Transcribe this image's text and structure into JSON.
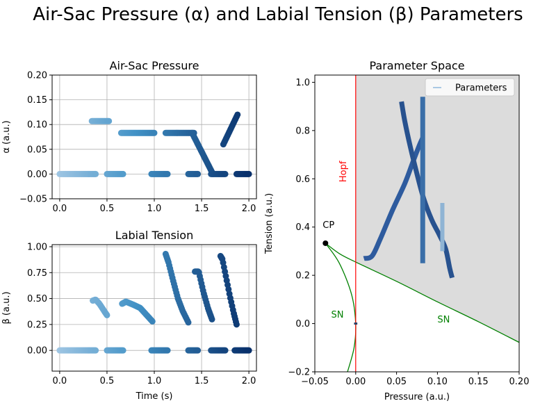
{
  "figure": {
    "suptitle": "Air-Sac Pressure (α) and Labial Tension (β) Parameters"
  },
  "colors": {
    "grid": "#b0b0b0",
    "hopf": "#ff0000",
    "sn": "#008000",
    "region": "#dcdcdc",
    "cp_point": "#000000"
  },
  "chart_data": [
    {
      "id": "alpha",
      "type": "scatter",
      "title": "Air-Sac Pressure",
      "xlabel": "",
      "ylabel": "α (a.u.)",
      "xlim": [
        -0.08,
        2.08
      ],
      "ylim": [
        -0.05,
        0.2
      ],
      "xticks": [
        0.0,
        0.5,
        1.0,
        1.5,
        2.0
      ],
      "xtick_labels": [
        "0.0",
        "0.5",
        "1.0",
        "1.5",
        "2.0"
      ],
      "yticks": [
        -0.05,
        0.0,
        0.05,
        0.1,
        0.15,
        0.2
      ],
      "ytick_labels": [
        "−0.05",
        "0.00",
        "0.05",
        "0.10",
        "0.15",
        "0.20"
      ],
      "grid": true,
      "colormap": "Blues (light → dark with time)",
      "segments": [
        {
          "x": [
            0.0,
            0.38
          ],
          "y": [
            0.0,
            0.0
          ]
        },
        {
          "x": [
            0.34,
            0.52
          ],
          "y": [
            0.107,
            0.107
          ]
        },
        {
          "x": [
            0.5,
            0.67
          ],
          "y": [
            0.0,
            0.0
          ]
        },
        {
          "x": [
            0.65,
            1.0
          ],
          "y": [
            0.083,
            0.083
          ]
        },
        {
          "x": [
            0.97,
            1.14
          ],
          "y": [
            0.0,
            0.0
          ]
        },
        {
          "x": [
            1.12,
            1.42
          ],
          "y": [
            0.083,
            0.083
          ]
        },
        {
          "x": [
            1.4,
            1.62
          ],
          "y": [
            0.083,
            0.0
          ]
        },
        {
          "x": [
            1.36,
            1.46
          ],
          "y": [
            0.0,
            0.0
          ]
        },
        {
          "x": [
            1.6,
            1.75
          ],
          "y": [
            0.0,
            0.0
          ]
        },
        {
          "x": [
            1.73,
            1.88
          ],
          "y": [
            0.06,
            0.12
          ]
        },
        {
          "x": [
            1.87,
            2.0
          ],
          "y": [
            0.0,
            0.0
          ]
        }
      ]
    },
    {
      "id": "beta",
      "type": "scatter",
      "title": "Labial Tension",
      "xlabel": "Time (s)",
      "ylabel": "β (a.u.)",
      "xlim": [
        -0.08,
        2.08
      ],
      "ylim": [
        -0.2,
        1.02
      ],
      "xticks": [
        0.0,
        0.5,
        1.0,
        1.5,
        2.0
      ],
      "xtick_labels": [
        "0.0",
        "0.5",
        "1.0",
        "1.5",
        "2.0"
      ],
      "yticks": [
        0.0,
        0.25,
        0.5,
        0.75,
        1.0
      ],
      "ytick_labels": [
        "0.00",
        "0.25",
        "0.50",
        "0.75",
        "1.00"
      ],
      "grid": true,
      "colormap": "Blues (light → dark with time)",
      "segments": [
        {
          "x": [
            0.0,
            0.38
          ],
          "y": [
            0.0,
            0.0
          ]
        },
        {
          "x": [
            0.35,
            0.38,
            0.42,
            0.47,
            0.5
          ],
          "y": [
            0.48,
            0.49,
            0.45,
            0.38,
            0.34
          ]
        },
        {
          "x": [
            0.5,
            0.67
          ],
          "y": [
            0.0,
            0.0
          ]
        },
        {
          "x": [
            0.66,
            0.7,
            0.78,
            0.85,
            0.92,
            0.98
          ],
          "y": [
            0.45,
            0.47,
            0.44,
            0.41,
            0.34,
            0.28
          ]
        },
        {
          "x": [
            0.97,
            1.14
          ],
          "y": [
            0.0,
            0.0
          ]
        },
        {
          "x": [
            1.12,
            1.15,
            1.2,
            1.25,
            1.3,
            1.36
          ],
          "y": [
            0.93,
            0.85,
            0.67,
            0.5,
            0.38,
            0.27
          ]
        },
        {
          "x": [
            1.36,
            1.46
          ],
          "y": [
            0.0,
            0.0
          ]
        },
        {
          "x": [
            1.43,
            1.47,
            1.52,
            1.57,
            1.61
          ],
          "y": [
            0.76,
            0.76,
            0.56,
            0.4,
            0.3
          ]
        },
        {
          "x": [
            1.6,
            1.75
          ],
          "y": [
            0.0,
            0.0
          ]
        },
        {
          "x": [
            1.7,
            1.72,
            1.76,
            1.8,
            1.84,
            1.87
          ],
          "y": [
            0.91,
            0.88,
            0.7,
            0.52,
            0.36,
            0.25
          ]
        },
        {
          "x": [
            1.85,
            2.0
          ],
          "y": [
            0.0,
            0.0
          ]
        }
      ]
    },
    {
      "id": "param",
      "type": "line",
      "title": "Parameter Space",
      "xlabel": "Pressure (a.u.)",
      "ylabel": "Tension (a.u.)",
      "xlim": [
        -0.05,
        0.2
      ],
      "ylim": [
        -0.2,
        1.03
      ],
      "xticks": [
        -0.05,
        0.0,
        0.05,
        0.1,
        0.15,
        0.2
      ],
      "xtick_labels": [
        "−0.05",
        "0.00",
        "0.05",
        "0.10",
        "0.15",
        "0.20"
      ],
      "yticks": [
        -0.2,
        0.0,
        0.2,
        0.4,
        0.6,
        0.8,
        1.0
      ],
      "ytick_labels": [
        "−0.2",
        "0.0",
        "0.2",
        "0.4",
        "0.6",
        "0.8",
        "1.0"
      ],
      "grid": false,
      "legend": {
        "position": "top-right",
        "entries": [
          "Parameters"
        ]
      },
      "hopf_line": {
        "x": 0.0,
        "label": "Hopf"
      },
      "cusp_point": {
        "x": -0.037,
        "y": 0.333,
        "label": "CP"
      },
      "sn_upper": {
        "label": "SN",
        "x": [
          -0.037,
          -0.02,
          0.0,
          0.05,
          0.1,
          0.15,
          0.2
        ],
        "y": [
          0.333,
          0.29,
          0.255,
          0.175,
          0.09,
          0.008,
          -0.078
        ]
      },
      "sn_lower": {
        "label": "SN",
        "x": [
          -0.037,
          -0.02,
          -0.005,
          0.0,
          -0.002,
          -0.01
        ],
        "y": [
          0.333,
          0.25,
          0.12,
          0.0,
          -0.1,
          -0.2
        ]
      },
      "shaded_region": {
        "x_from": 0.0,
        "description": "oscillatory region"
      },
      "trajectories": [
        {
          "x": [
            0.01,
            0.02,
            0.03,
            0.045,
            0.06,
            0.07,
            0.078,
            0.082
          ],
          "y": [
            0.27,
            0.28,
            0.35,
            0.47,
            0.58,
            0.67,
            0.74,
            0.77
          ]
        },
        {
          "x": [
            0.056,
            0.06,
            0.067,
            0.075,
            0.083,
            0.093,
            0.102,
            0.11,
            0.115,
            0.118
          ],
          "y": [
            0.92,
            0.84,
            0.73,
            0.62,
            0.52,
            0.43,
            0.37,
            0.31,
            0.23,
            0.19
          ]
        },
        {
          "x": [
            0.082,
            0.082
          ],
          "y": [
            0.25,
            0.94
          ]
        },
        {
          "x": [
            0.106,
            0.106
          ],
          "y": [
            0.3,
            0.5
          ]
        },
        {
          "x": [
            -0.002,
            0.002
          ],
          "y": [
            0.0,
            0.0
          ]
        }
      ],
      "annotations": [
        "CP",
        "Hopf",
        "SN",
        "SN"
      ]
    }
  ]
}
